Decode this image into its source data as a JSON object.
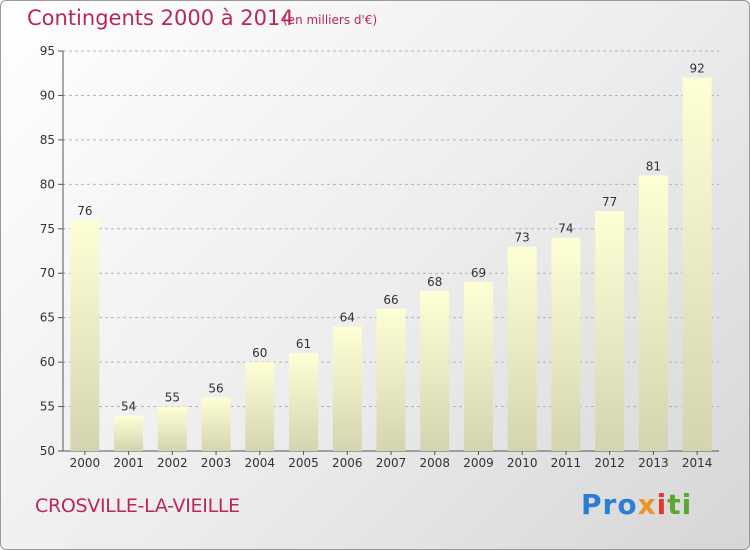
{
  "header": {
    "title": "Contingents 2000 à 2014",
    "subtitle": "(en milliers d'€)"
  },
  "footer": {
    "commune": "CROSVILLE-LA-VIEILLE",
    "logo_parts": [
      "Pro",
      "x",
      "i",
      "ti"
    ]
  },
  "colors": {
    "title": "#b8285a",
    "bar_top": "#ffffd6",
    "bar_bottom": "#d4d4b0",
    "logo_blue": "#2a7fd4",
    "logo_orange": "#e9952a",
    "logo_red": "#e03a2b",
    "logo_green": "#5aa832"
  },
  "chart_data": {
    "type": "bar",
    "categories": [
      "2000",
      "2001",
      "2002",
      "2003",
      "2004",
      "2005",
      "2006",
      "2007",
      "2008",
      "2009",
      "2010",
      "2011",
      "2012",
      "2013",
      "2014"
    ],
    "values": [
      76,
      54,
      55,
      56,
      60,
      61,
      64,
      66,
      68,
      69,
      73,
      74,
      77,
      81,
      92
    ],
    "ylim": [
      50,
      95
    ],
    "yticks": [
      50,
      55,
      60,
      65,
      70,
      75,
      80,
      85,
      90,
      95
    ],
    "grid": "horizontal dashed",
    "title": "Contingents 2000 à 2014",
    "subtitle": "(en milliers d'€)"
  }
}
